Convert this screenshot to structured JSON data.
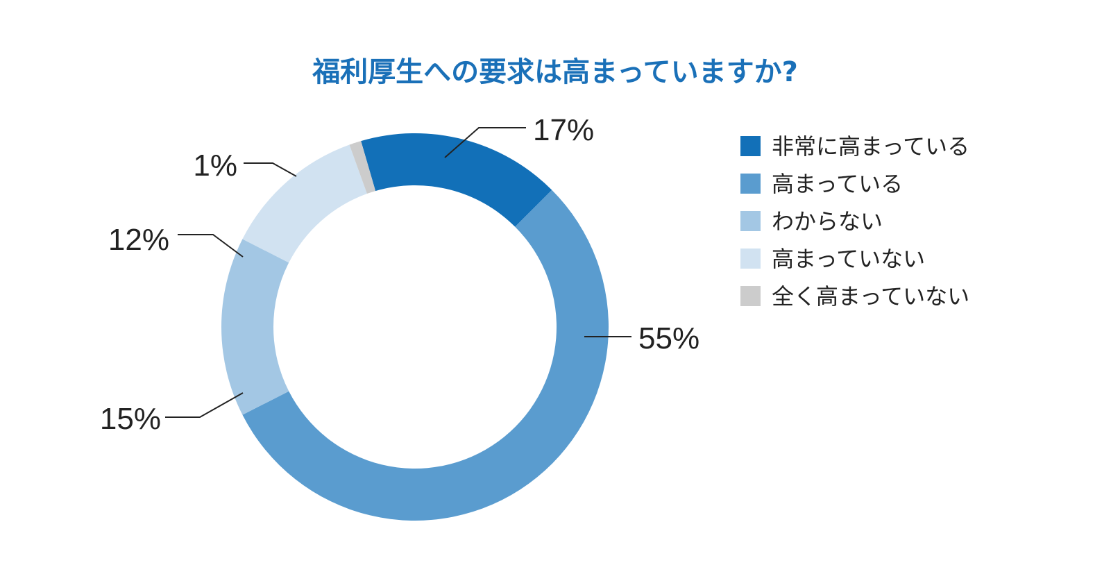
{
  "chart_data": {
    "type": "pie",
    "title": "福利厚生への要求は高まっていますか?",
    "title_color": "#1a70b8",
    "categories": [
      "非常に高まっている",
      "高まっている",
      "わからない",
      "高まっていない",
      "全く高まっていない"
    ],
    "values": [
      17,
      55,
      15,
      12,
      1
    ],
    "value_labels": [
      "17%",
      "55%",
      "15%",
      "12%",
      "1%"
    ],
    "colors": [
      "#1270b8",
      "#5a9ccf",
      "#a3c7e4",
      "#d1e2f1",
      "#cccccc"
    ],
    "donut": true,
    "legend_position": "right"
  }
}
